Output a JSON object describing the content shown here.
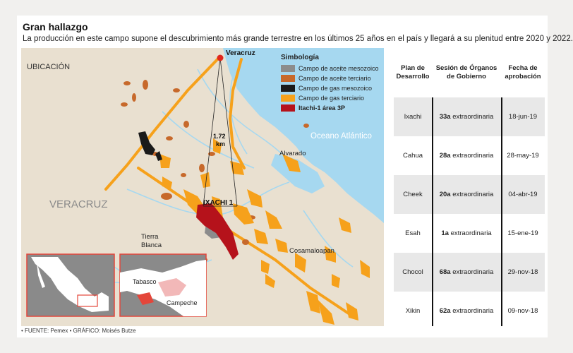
{
  "header": {
    "title": "Gran hallazgo",
    "subtitle": "La producción en este campo supone el descubrimiento más grande terrestre en los últimos 25 años en el país y llegará a su plenitud entre 2020 y 2022."
  },
  "map": {
    "labels": {
      "ubicacion": "UBICACIÓN",
      "veracruz_city": "Veracruz",
      "veracruz_state": "VERACRUZ",
      "ocean": "Oceano Atlántico",
      "alvarado": "Alvarado",
      "ixachi": "IXACHI 1",
      "tierra_blanca_1": "Tierra",
      "tierra_blanca_2": "Blanca",
      "cosamaloapan": "Cosamaloapan",
      "distance_1": "1.72",
      "distance_2": "km",
      "tabasco": "Tabasco",
      "campeche": "Campeche"
    },
    "colors": {
      "land": "#e9e0d0",
      "sea": "#a6d8f0",
      "road": "#f6a11b",
      "inset_bg": "#8a8a8a",
      "highlight": "#e4463a"
    }
  },
  "legend": {
    "title": "Simbología",
    "items": [
      {
        "label": "Campo de aceite mesozoico",
        "color": "#8c8c8c"
      },
      {
        "label": "Campo de aceite terciario",
        "color": "#c7692b"
      },
      {
        "label": "Campo de gas mesozoico",
        "color": "#1a1a1a"
      },
      {
        "label": "Campo de gas terciario",
        "color": "#f6a11b"
      },
      {
        "label": "Itachi-1 área 3P",
        "color": "#b5121b"
      }
    ]
  },
  "table": {
    "headers": {
      "plan": "Plan de Desarrollo",
      "sesion": "Sesión de Órganos de Gobierno",
      "fecha": "Fecha de aprobación"
    },
    "rows": [
      {
        "plan": "Ixachi",
        "num": "33a",
        "tipo": "extraordinaria",
        "fecha": "18-jun-19"
      },
      {
        "plan": "Cahua",
        "num": "28a",
        "tipo": "extraordinaria",
        "fecha": "28-may-19"
      },
      {
        "plan": "Cheek",
        "num": "20a",
        "tipo": "extraordinaria",
        "fecha": "04-abr-19"
      },
      {
        "plan": "Esah",
        "num": "1a",
        "tipo": "extraordinaria",
        "fecha": "15-ene-19"
      },
      {
        "plan": "Chocol",
        "num": "68a",
        "tipo": "extraordinaria",
        "fecha": "29-nov-18"
      },
      {
        "plan": "Xikin",
        "num": "62a",
        "tipo": "extraordinaria",
        "fecha": "09-nov-18"
      }
    ]
  },
  "footer": "• FUENTE: Pemex • GRÁFICO: Moisés Butze"
}
